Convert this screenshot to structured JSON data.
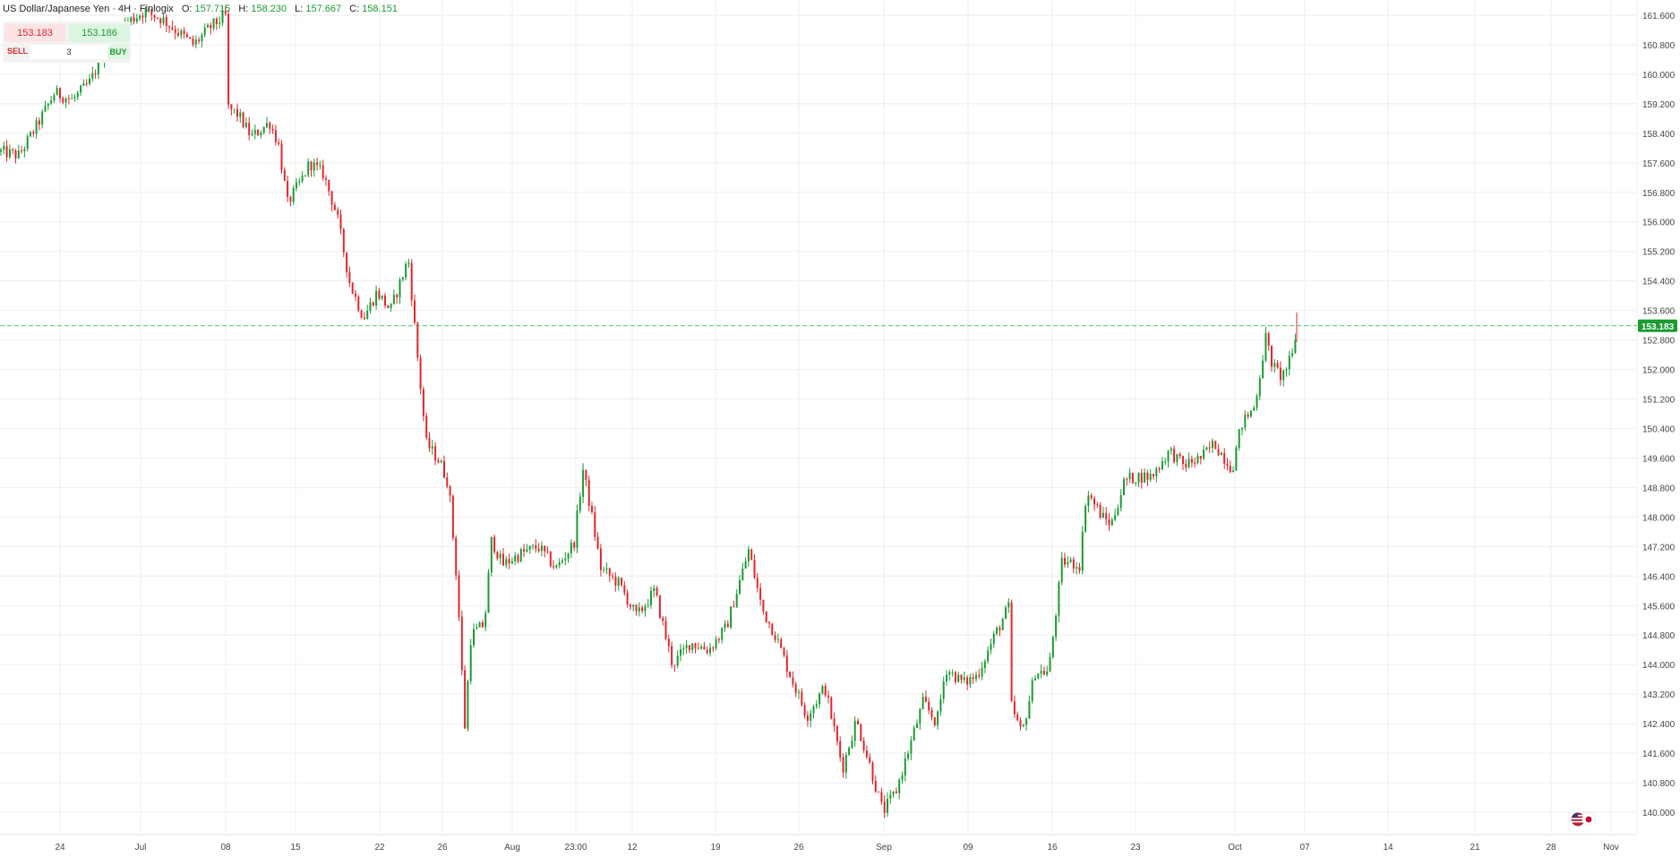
{
  "legend": {
    "symbol": "US Dollar/Japanese Yen",
    "sep1": "·",
    "timeframe": "4H",
    "sep2": "·",
    "source": "Finlogix",
    "o_label": "O:",
    "o_value": "157.715",
    "h_label": "H:",
    "h_value": "158.230",
    "l_label": "L:",
    "l_value": "157.667",
    "c_label": "C:",
    "c_value": "158.151"
  },
  "trade": {
    "sell_price": "153.183",
    "buy_price": "153.186",
    "sell_label": "SELL",
    "buy_label": "BUY",
    "quantity": "3"
  },
  "colors": {
    "up": "#1a9b33",
    "down": "#e0262b",
    "grid": "#eeeeee",
    "price_line": "#22b14c",
    "price_badge": "#1a9b33"
  },
  "chart_data": {
    "type": "candlestick",
    "y_axis_ticks": [
      "161.600",
      "160.800",
      "160.000",
      "159.200",
      "158.400",
      "157.600",
      "156.800",
      "156.000",
      "155.200",
      "154.400",
      "153.600",
      "152.800",
      "152.000",
      "151.200",
      "150.400",
      "149.600",
      "148.800",
      "148.000",
      "147.200",
      "146.400",
      "145.600",
      "144.800",
      "144.000",
      "143.200",
      "142.400",
      "141.600",
      "140.800",
      "140.000"
    ],
    "ylim": [
      139.6,
      162.0
    ],
    "x_axis_ticks": [
      "24",
      "Jul",
      "08",
      "15",
      "22",
      "26",
      "Aug",
      "23:00",
      "12",
      "19",
      "26",
      "Sep",
      "09",
      "16",
      "23",
      "Oct",
      "07",
      "14",
      "21",
      "28",
      "Nov"
    ],
    "current_price": 153.183,
    "current_price_label": "153.183",
    "price_path": [
      [
        0,
        157.9
      ],
      [
        20,
        157.8
      ],
      [
        40,
        158.6
      ],
      [
        60,
        159.5
      ],
      [
        80,
        159.3
      ],
      [
        100,
        159.8
      ],
      [
        120,
        160.9
      ],
      [
        140,
        161.4
      ],
      [
        160,
        161.7
      ],
      [
        180,
        161.5
      ],
      [
        200,
        161.1
      ],
      [
        215,
        160.8
      ],
      [
        235,
        161.3
      ],
      [
        252,
        161.6
      ],
      [
        253,
        159.1
      ],
      [
        265,
        158.9
      ],
      [
        280,
        158.3
      ],
      [
        300,
        158.7
      ],
      [
        310,
        158.1
      ],
      [
        320,
        156.5
      ],
      [
        335,
        157.1
      ],
      [
        345,
        157.6
      ],
      [
        360,
        157.3
      ],
      [
        375,
        156.2
      ],
      [
        390,
        154.3
      ],
      [
        405,
        153.4
      ],
      [
        420,
        154.1
      ],
      [
        435,
        153.6
      ],
      [
        455,
        155.0
      ],
      [
        465,
        152.4
      ],
      [
        475,
        150.0
      ],
      [
        490,
        149.5
      ],
      [
        500,
        148.9
      ],
      [
        510,
        146.0
      ],
      [
        518,
        142.3
      ],
      [
        525,
        144.8
      ],
      [
        540,
        145.1
      ],
      [
        548,
        147.4
      ],
      [
        560,
        146.7
      ],
      [
        580,
        147.0
      ],
      [
        600,
        147.2
      ],
      [
        620,
        146.6
      ],
      [
        640,
        147.3
      ],
      [
        650,
        149.3
      ],
      [
        660,
        148.0
      ],
      [
        670,
        146.6
      ],
      [
        690,
        146.2
      ],
      [
        710,
        145.3
      ],
      [
        730,
        146.0
      ],
      [
        750,
        144.0
      ],
      [
        770,
        144.6
      ],
      [
        790,
        144.4
      ],
      [
        810,
        145.0
      ],
      [
        835,
        147.1
      ],
      [
        850,
        145.5
      ],
      [
        865,
        144.8
      ],
      [
        880,
        143.8
      ],
      [
        900,
        142.6
      ],
      [
        920,
        143.4
      ],
      [
        940,
        141.2
      ],
      [
        955,
        142.5
      ],
      [
        970,
        141.3
      ],
      [
        985,
        140.0
      ],
      [
        1000,
        140.6
      ],
      [
        1015,
        141.8
      ],
      [
        1030,
        143.0
      ],
      [
        1045,
        142.4
      ],
      [
        1055,
        143.9
      ],
      [
        1075,
        143.5
      ],
      [
        1090,
        143.7
      ],
      [
        1110,
        144.8
      ],
      [
        1126,
        145.6
      ],
      [
        1128,
        142.9
      ],
      [
        1140,
        142.1
      ],
      [
        1155,
        143.8
      ],
      [
        1170,
        143.8
      ],
      [
        1185,
        146.8
      ],
      [
        1205,
        146.7
      ],
      [
        1212,
        148.7
      ],
      [
        1230,
        148.0
      ],
      [
        1240,
        147.8
      ],
      [
        1255,
        149.0
      ],
      [
        1270,
        149.1
      ],
      [
        1285,
        149.1
      ],
      [
        1305,
        149.8
      ],
      [
        1320,
        149.4
      ],
      [
        1340,
        149.6
      ],
      [
        1355,
        150.0
      ],
      [
        1375,
        149.3
      ],
      [
        1385,
        150.5
      ],
      [
        1400,
        151.0
      ],
      [
        1410,
        152.5
      ],
      [
        1412,
        152.9
      ],
      [
        1420,
        152.1
      ],
      [
        1430,
        151.8
      ],
      [
        1443,
        152.4
      ],
      [
        1447,
        153.18
      ]
    ]
  }
}
